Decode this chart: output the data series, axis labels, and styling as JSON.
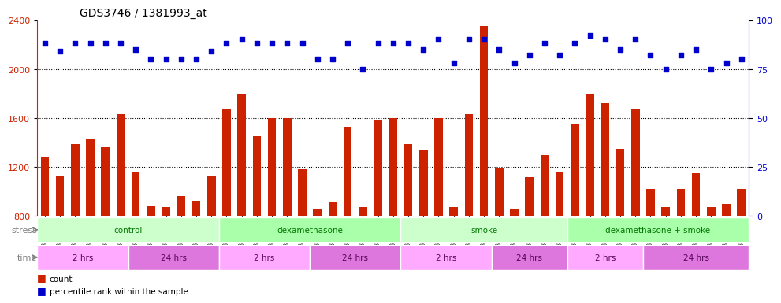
{
  "title": "GDS3746 / 1381993_at",
  "samples": [
    "GSM389536",
    "GSM389537",
    "GSM389538",
    "GSM389539",
    "GSM389540",
    "GSM389541",
    "GSM389530",
    "GSM389531",
    "GSM389532",
    "GSM389533",
    "GSM389534",
    "GSM389535",
    "GSM389560",
    "GSM389561",
    "GSM389562",
    "GSM389563",
    "GSM389564",
    "GSM389565",
    "GSM389554",
    "GSM389555",
    "GSM389556",
    "GSM389557",
    "GSM389558",
    "GSM389559",
    "GSM389571",
    "GSM389572",
    "GSM389573",
    "GSM389574",
    "GSM389575",
    "GSM389576",
    "GSM389566",
    "GSM389567",
    "GSM389568",
    "GSM389569",
    "GSM389570",
    "GSM389548",
    "GSM389549",
    "GSM389550",
    "GSM389551",
    "GSM389552",
    "GSM389553",
    "GSM389542",
    "GSM389543",
    "GSM389544",
    "GSM389545",
    "GSM389546",
    "GSM389547"
  ],
  "counts": [
    1280,
    1130,
    1390,
    1430,
    1360,
    1630,
    1160,
    880,
    870,
    960,
    920,
    1130,
    1670,
    1800,
    1450,
    1600,
    1600,
    1180,
    860,
    910,
    1520,
    870,
    1580,
    1600,
    1390,
    1340,
    1600,
    870,
    1630,
    2350,
    1190,
    860,
    1120,
    1300,
    1160,
    1550,
    1800,
    1720,
    1350,
    1670,
    1020,
    870,
    1020,
    1150,
    870,
    900,
    1020
  ],
  "percentiles": [
    88,
    84,
    88,
    88,
    88,
    88,
    85,
    80,
    80,
    80,
    80,
    84,
    88,
    90,
    88,
    88,
    88,
    88,
    80,
    80,
    88,
    75,
    88,
    88,
    88,
    85,
    90,
    78,
    90,
    90,
    85,
    78,
    82,
    88,
    82,
    88,
    92,
    90,
    85,
    90,
    82,
    75,
    82,
    85,
    75,
    78,
    80
  ],
  "bar_color": "#cc2200",
  "dot_color": "#0000cc",
  "ylim_left": [
    800,
    2400
  ],
  "ylim_right": [
    0,
    100
  ],
  "yticks_left": [
    800,
    1200,
    1600,
    2000,
    2400
  ],
  "yticks_right": [
    0,
    25,
    50,
    75,
    100
  ],
  "stress_groups": [
    {
      "label": "control",
      "start": 0,
      "end": 12,
      "color": "#ccffcc"
    },
    {
      "label": "dexamethasone",
      "start": 12,
      "end": 24,
      "color": "#aaffaa"
    },
    {
      "label": "smoke",
      "start": 24,
      "end": 35,
      "color": "#ccffcc"
    },
    {
      "label": "dexamethasone + smoke",
      "start": 35,
      "end": 47,
      "color": "#aaffaa"
    }
  ],
  "time_groups": [
    {
      "label": "2 hrs",
      "start": 0,
      "end": 6,
      "color": "#ffaaff"
    },
    {
      "label": "24 hrs",
      "start": 6,
      "end": 12,
      "color": "#dd88dd"
    },
    {
      "label": "2 hrs",
      "start": 12,
      "end": 18,
      "color": "#ffaaff"
    },
    {
      "label": "24 hrs",
      "start": 18,
      "end": 24,
      "color": "#dd88dd"
    },
    {
      "label": "2 hrs",
      "start": 24,
      "end": 30,
      "color": "#ffaaff"
    },
    {
      "label": "24 hrs",
      "start": 30,
      "end": 35,
      "color": "#dd88dd"
    },
    {
      "label": "2 hrs",
      "start": 35,
      "end": 40,
      "color": "#ffaaff"
    },
    {
      "label": "24 hrs",
      "start": 40,
      "end": 47,
      "color": "#dd88dd"
    }
  ],
  "legend_count_color": "#cc2200",
  "legend_pct_color": "#0000cc",
  "bg_color": "#ffffff"
}
